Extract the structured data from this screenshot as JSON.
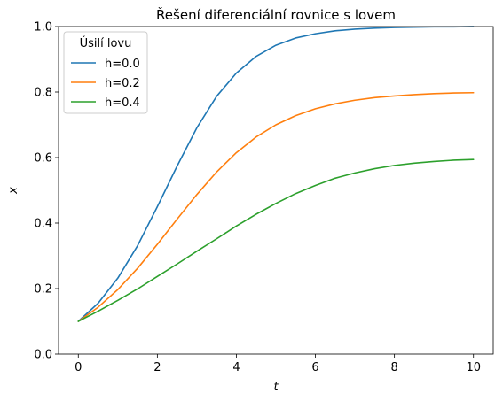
{
  "chart_data": {
    "type": "line",
    "title": "Řešení diferenciální rovnice s lovem",
    "xlabel": "t",
    "ylabel": "x",
    "xlim": [
      -0.5,
      10.5
    ],
    "ylim": [
      0.0,
      1.0
    ],
    "xticks": [
      0,
      2,
      4,
      6,
      8,
      10
    ],
    "yticks": [
      0.0,
      0.2,
      0.4,
      0.6,
      0.8,
      1.0
    ],
    "xtick_labels": [
      "0",
      "2",
      "4",
      "6",
      "8",
      "10"
    ],
    "ytick_labels": [
      "0.0",
      "0.2",
      "0.4",
      "0.6",
      "0.8",
      "1.0"
    ],
    "grid": false,
    "legend": {
      "title": "Úsilí lovu",
      "placement": "top-left"
    },
    "x": [
      0,
      0.5,
      1,
      1.5,
      2,
      2.5,
      3,
      3.5,
      4,
      4.5,
      5,
      5.5,
      6,
      6.5,
      7,
      7.5,
      8,
      8.5,
      9,
      9.5,
      10
    ],
    "series": [
      {
        "name": "h=0.0",
        "color": "#1f77b4",
        "values": [
          0.1,
          0.155,
          0.232,
          0.331,
          0.45,
          0.574,
          0.691,
          0.787,
          0.858,
          0.909,
          0.943,
          0.965,
          0.978,
          0.987,
          0.992,
          0.995,
          0.997,
          0.998,
          0.999,
          0.999,
          1.0
        ]
      },
      {
        "name": "h=0.2",
        "color": "#ff7f0e",
        "values": [
          0.1,
          0.143,
          0.197,
          0.262,
          0.335,
          0.412,
          0.487,
          0.556,
          0.615,
          0.663,
          0.7,
          0.728,
          0.749,
          0.764,
          0.775,
          0.783,
          0.788,
          0.792,
          0.795,
          0.797,
          0.798
        ]
      },
      {
        "name": "h=0.4",
        "color": "#2ca02c",
        "values": [
          0.1,
          0.131,
          0.164,
          0.199,
          0.237,
          0.275,
          0.314,
          0.352,
          0.391,
          0.427,
          0.46,
          0.49,
          0.515,
          0.537,
          0.553,
          0.566,
          0.576,
          0.583,
          0.588,
          0.592,
          0.594
        ]
      }
    ]
  }
}
